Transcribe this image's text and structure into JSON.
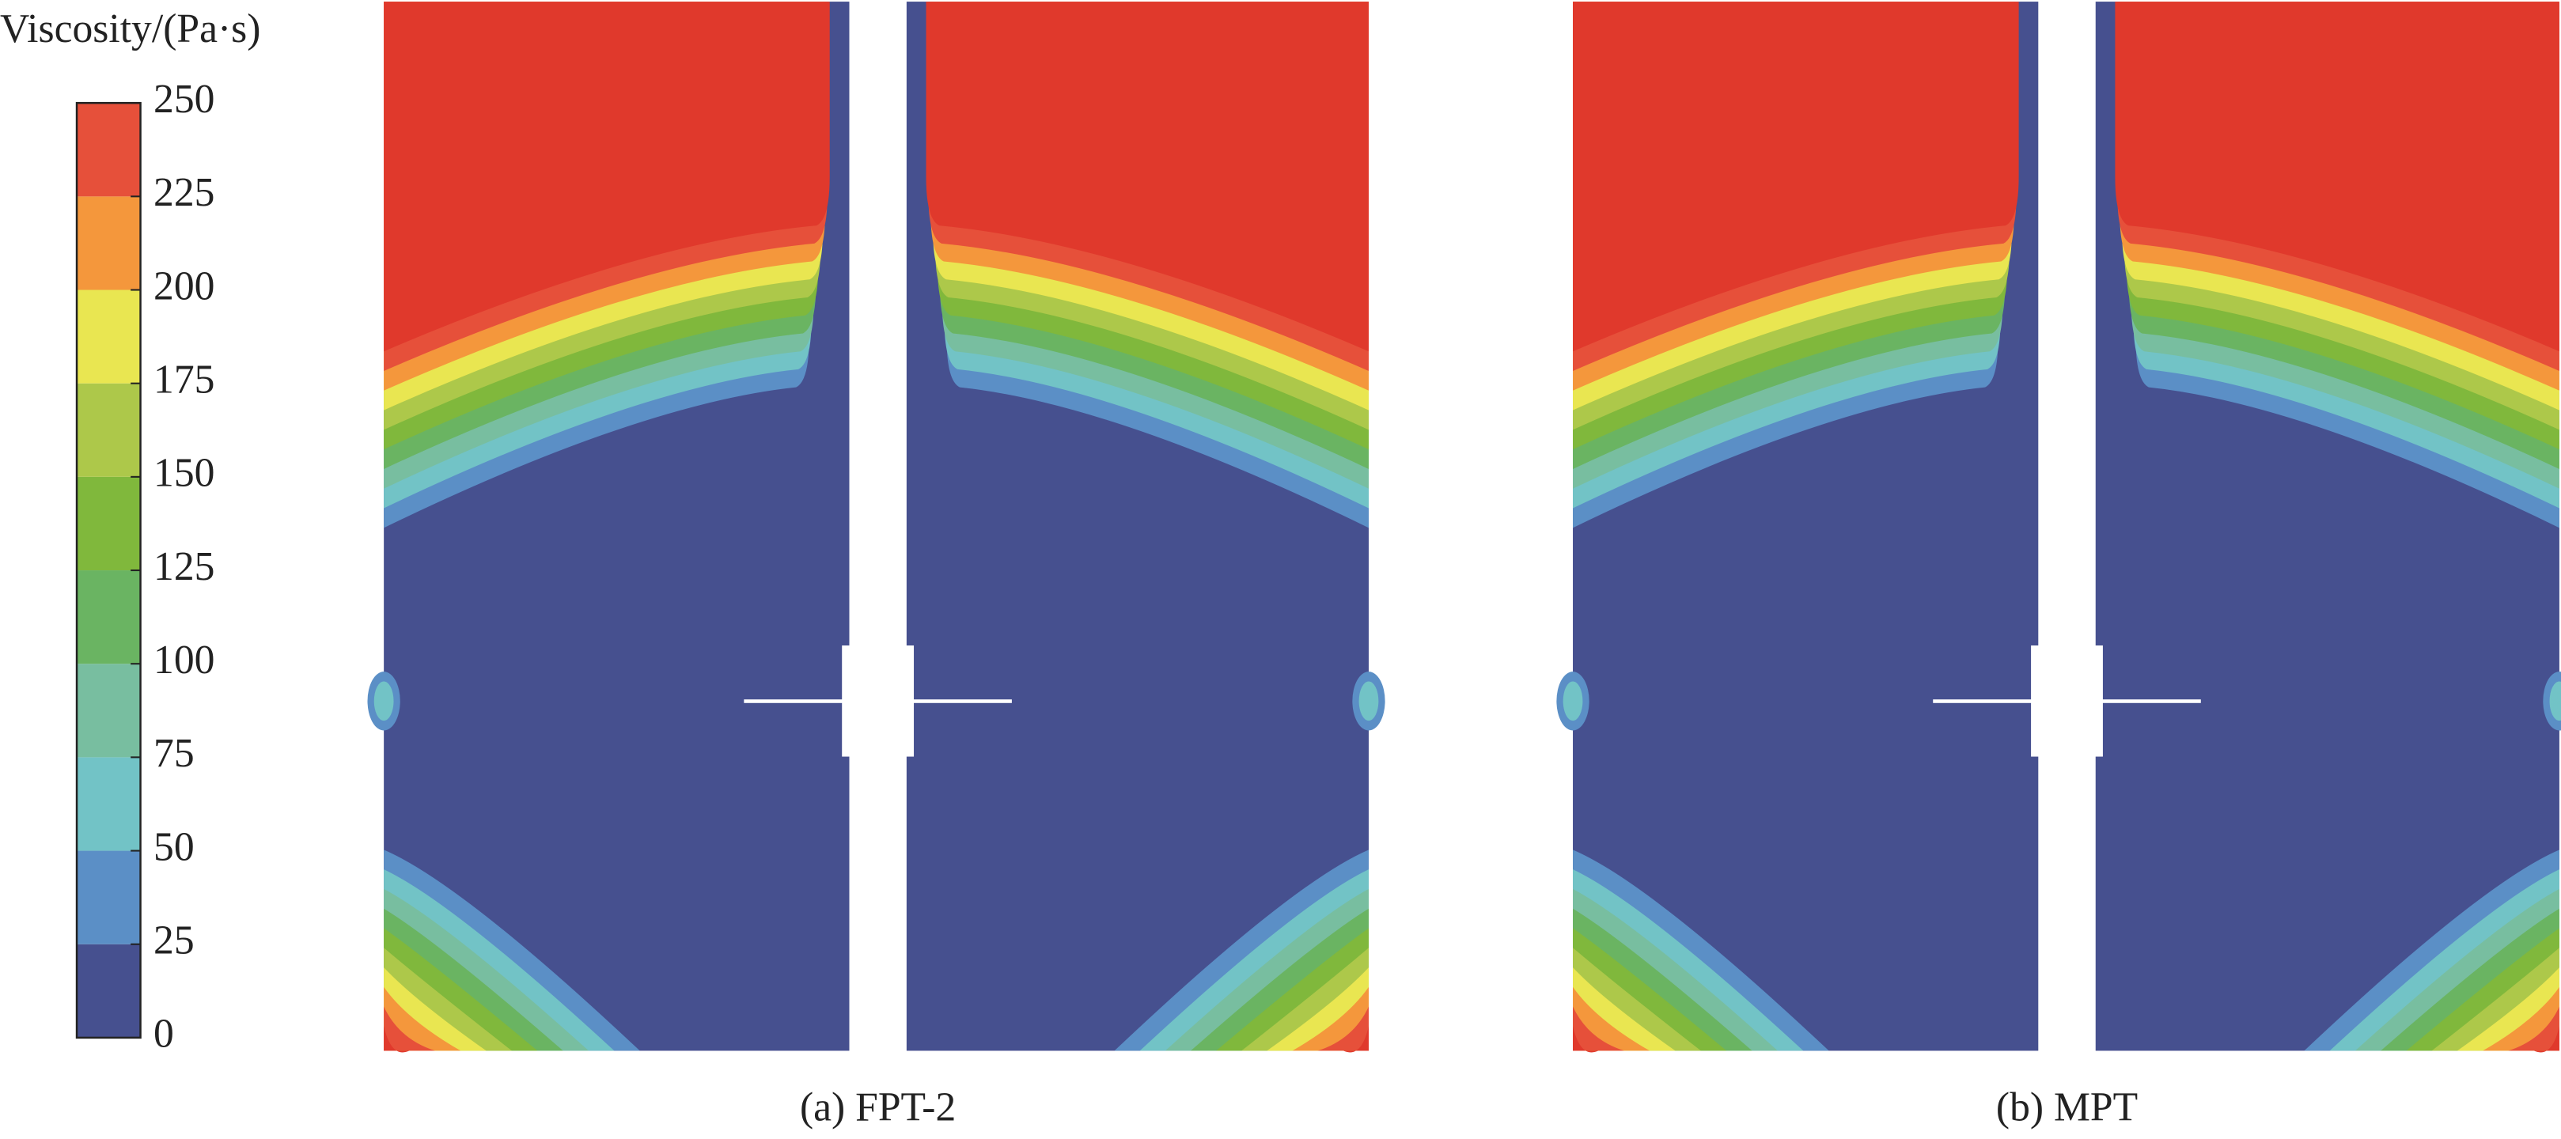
{
  "chart_data": {
    "type": "contour",
    "colorbar": {
      "label": "Viscosity/(Pa·s)",
      "lim": [
        0,
        250
      ],
      "ticks": [
        0,
        25,
        50,
        75,
        100,
        125,
        150,
        175,
        200,
        225,
        250
      ],
      "colors": [
        "#46508f",
        "#5b8fc6",
        "#72c3c6",
        "#78bea0",
        "#6ab462",
        "#80b83c",
        "#adc84a",
        "#e9e651",
        "#f4973c",
        "#e6503a"
      ]
    },
    "field_color_max": "#e0392c",
    "panels": [
      {
        "caption": "(a) FPT-2"
      },
      {
        "caption": "(b) MPT"
      }
    ]
  }
}
